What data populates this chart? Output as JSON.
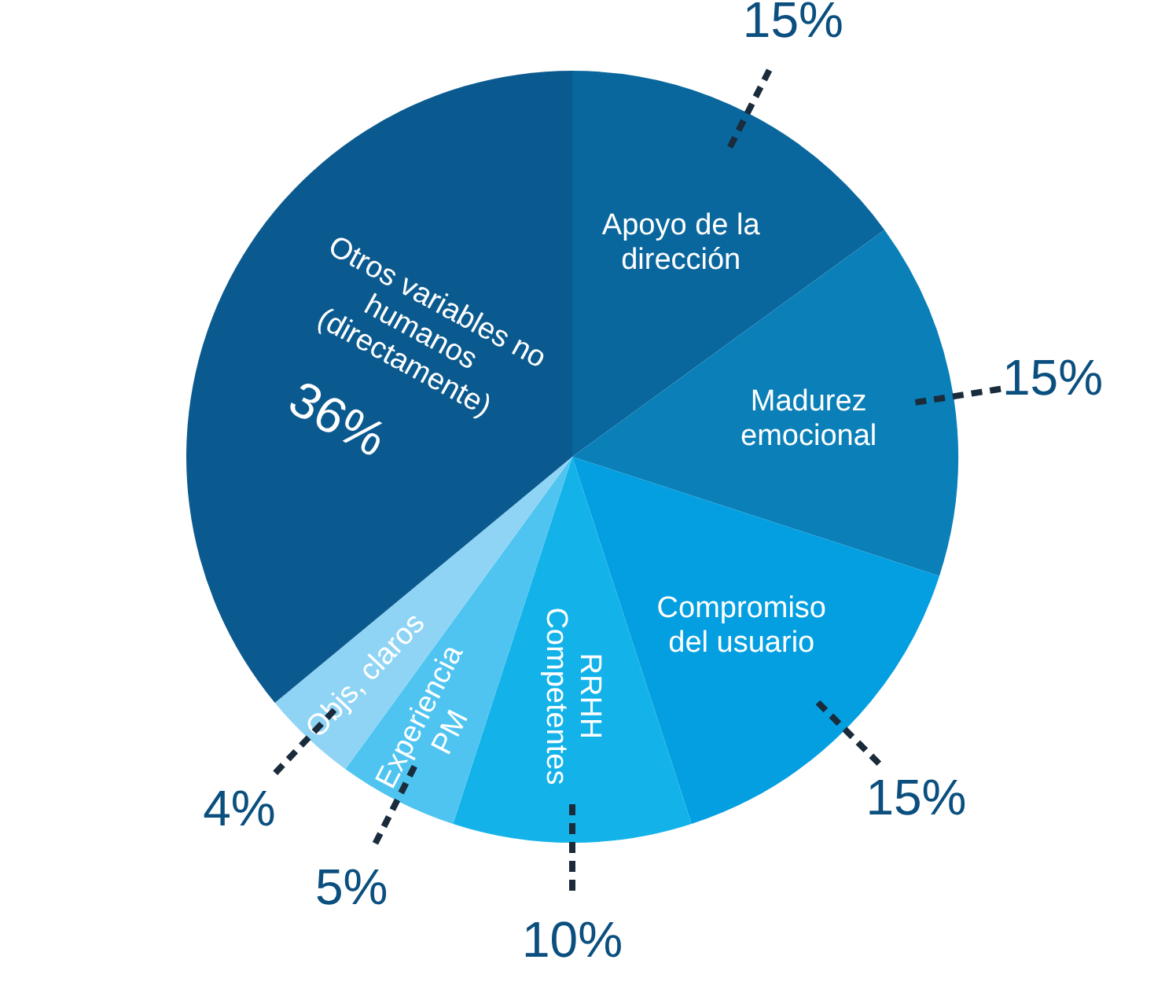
{
  "chart_data": {
    "type": "pie",
    "categories": [
      "Apoyo de la dirección",
      "Madurez emocional",
      "Compromiso del usuario",
      "RRHH Competentes",
      "Experiencia PM",
      "Objs, claros",
      "Otros variables no humanos (directamente)"
    ],
    "values": [
      15,
      15,
      15,
      10,
      5,
      4,
      36
    ],
    "value_labels": [
      "15%",
      "15%",
      "15%",
      "10%",
      "5%",
      "4%",
      "36%"
    ],
    "colors": [
      "#0a679e",
      "#0a7fb8",
      "#049fe0",
      "#13b3ea",
      "#4fc4f0",
      "#8fd4f5",
      "#0b5a8f"
    ],
    "legend": false
  }
}
